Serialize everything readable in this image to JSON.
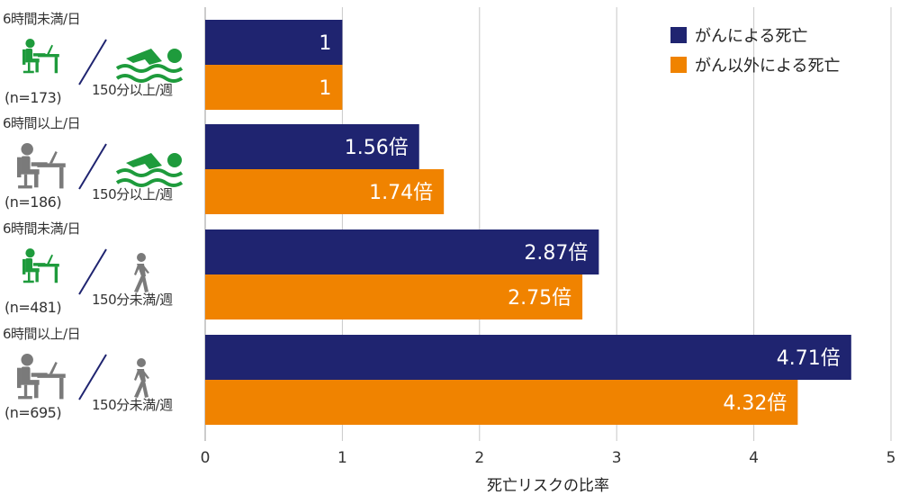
{
  "chart_data": {
    "type": "bar",
    "orientation": "horizontal",
    "xlabel": "死亡リスクの比率",
    "xlim": [
      0,
      5
    ],
    "xticks": [
      "0",
      "1",
      "2",
      "3",
      "4",
      "5"
    ],
    "grid": true,
    "legend_position": "top-right",
    "categories": [
      {
        "sitting": "6時間未満/日",
        "exercise": "150分以上/週",
        "n": "(n=173)",
        "sit_icon": "office-worker-icon-green",
        "ex_icon": "swimmer-icon"
      },
      {
        "sitting": "6時間以上/日",
        "exercise": "150分以上/週",
        "n": "(n=186)",
        "sit_icon": "office-worker-icon-gray",
        "ex_icon": "swimmer-icon"
      },
      {
        "sitting": "6時間未満/日",
        "exercise": "150分未満/週",
        "n": "(n=481)",
        "sit_icon": "office-worker-icon-green",
        "ex_icon": "walker-icon"
      },
      {
        "sitting": "6時間以上/日",
        "exercise": "150分未満/週",
        "n": "(n=695)",
        "sit_icon": "office-worker-icon-gray",
        "ex_icon": "walker-icon"
      }
    ],
    "series": [
      {
        "name": "がんによる死亡",
        "color": "#1f2470",
        "values": [
          1,
          1.56,
          2.87,
          4.71
        ],
        "labels": [
          "1",
          "1.56倍",
          "2.87倍",
          "4.71倍"
        ]
      },
      {
        "name": "がん以外による死亡",
        "color": "#f08300",
        "values": [
          1,
          1.74,
          2.75,
          4.32
        ],
        "labels": [
          "1",
          "1.74倍",
          "2.75倍",
          "4.32倍"
        ]
      }
    ]
  },
  "colors": {
    "green": "#1e9b3c",
    "gray": "#7a7a7a",
    "slash": "#1f2470",
    "grid": "#c8c8c8"
  }
}
